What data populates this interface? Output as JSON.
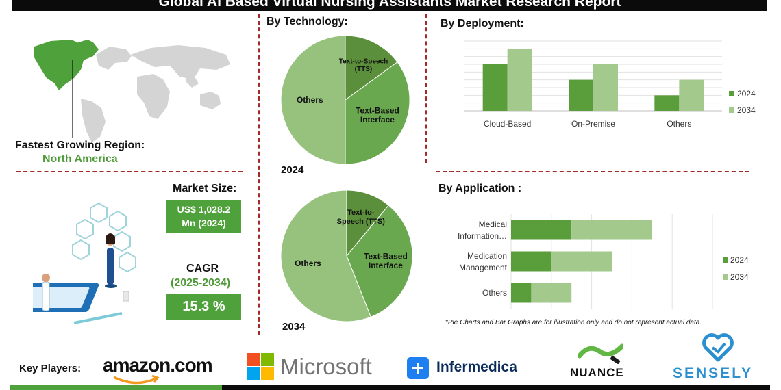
{
  "header": {
    "title": "Global AI Based Virtual Nursing Assistants Market Research Report"
  },
  "region": {
    "label": "Fastest Growing Region:",
    "value": "North America",
    "map_icon": "world-map-icon"
  },
  "market": {
    "size_label": "Market Size:",
    "size_value_line1": "US$ 1,028.2",
    "size_value_line2": "Mn (2024)",
    "cagr_label": "CAGR",
    "cagr_period": "(2025-2034)",
    "cagr_value": "15.3 %",
    "illustration_icon": "healthcare-app-illustration"
  },
  "technology": {
    "label": "By Technology:",
    "year_2024": "2024",
    "year_2034": "2034"
  },
  "deployment": {
    "label": "By  Deployment:"
  },
  "application": {
    "label": "By Application :"
  },
  "footnote": "*Pie Charts and Bar Graphs are for illustration only and do not represent actual data.",
  "key_players": {
    "label": "Key Players:",
    "amazon": "amazon.com",
    "microsoft": "Microsoft",
    "infermedica": "Infermedica",
    "nuance": "NUANCE",
    "sensely": "SENSELY"
  },
  "colors": {
    "dark_green": "#5a9e3b",
    "light_green": "#9dc584",
    "mid_green": "#6aa84f",
    "divider": "#a52a2a"
  },
  "chart_data": [
    {
      "type": "pie",
      "year": "2024",
      "slices": [
        {
          "label": "Others",
          "value": 50,
          "color": "#97c27e"
        },
        {
          "label": "Text-to-Speech (TTS)",
          "value": 15,
          "color": "#5b8f3b"
        },
        {
          "label": "Text-Based Interface",
          "value": 35,
          "color": "#6aa84f"
        }
      ]
    },
    {
      "type": "pie",
      "year": "2034",
      "slices": [
        {
          "label": "Others",
          "value": 56,
          "color": "#97c27e"
        },
        {
          "label": "Text-to-Speech (TTS)",
          "value": 11,
          "color": "#5b8f3b"
        },
        {
          "label": "Text-Based Interface",
          "value": 33,
          "color": "#6aa84f"
        }
      ]
    },
    {
      "type": "bar",
      "categories": [
        "Cloud-Based",
        "On-Premise",
        "Others"
      ],
      "series": [
        {
          "name": "2024",
          "values": [
            3,
            2,
            1
          ],
          "color": "#5a9e3b"
        },
        {
          "name": "2034",
          "values": [
            4,
            3,
            2
          ],
          "color": "#a3c98c"
        }
      ],
      "ylim": [
        0,
        4.5
      ],
      "grid": true,
      "legend": "right"
    },
    {
      "type": "bar",
      "orientation": "horizontal",
      "stacked": true,
      "categories": [
        "Medical Information…",
        "Medication Management",
        "Others"
      ],
      "category_lines": [
        [
          "Medical",
          "Information…"
        ],
        [
          "Medication",
          "Management"
        ],
        [
          "Others"
        ]
      ],
      "series": [
        {
          "name": "2024",
          "values": [
            3,
            2,
            1
          ],
          "color": "#5a9e3b"
        },
        {
          "name": "2034",
          "values": [
            4,
            3,
            2
          ],
          "color": "#a3c98c"
        }
      ],
      "xlim": [
        0,
        10
      ],
      "grid": true,
      "legend": "right"
    }
  ]
}
